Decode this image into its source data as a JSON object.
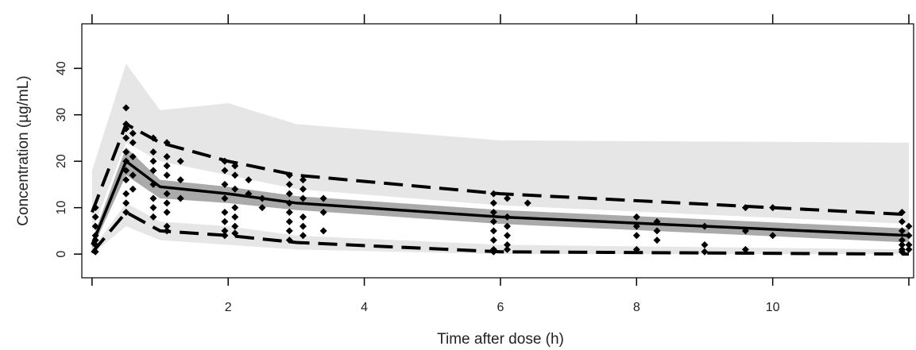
{
  "chart_data": {
    "type": "vpc",
    "xlabel": "Time after dose (h)",
    "ylabel": "Concentration (µg/mL)",
    "xlim": [
      -0.15,
      12.07
    ],
    "ylim": [
      -5.1,
      49.6
    ],
    "xticks": [
      {
        "value": 0,
        "label": null
      },
      2,
      4,
      6,
      8,
      10,
      {
        "value": 12,
        "label": null
      }
    ],
    "yticks": [
      0,
      10,
      20,
      30,
      40
    ],
    "x": [
      0,
      0.5,
      1,
      2,
      3,
      6,
      12
    ],
    "bands": [
      {
        "color": "#e6e6e6",
        "upper": [
          18,
          41,
          31,
          32.5,
          28,
          24.5,
          24
        ],
        "lower": [
          5,
          24,
          20,
          17,
          14,
          10.5,
          6.5
        ]
      },
      {
        "color": "#e6e6e6",
        "upper": [
          1,
          11,
          7,
          6,
          4,
          2,
          1
        ],
        "lower": [
          0,
          6,
          3,
          2,
          1,
          0,
          0
        ]
      },
      {
        "color": "#aaaaaa",
        "upper": [
          3,
          23,
          16,
          14.5,
          12.5,
          9.5,
          5.5
        ],
        "lower": [
          1,
          17,
          12,
          11,
          9.5,
          6.5,
          2.5
        ]
      }
    ],
    "lines": [
      {
        "color": "#000000",
        "dashed": false,
        "values": [
          2,
          20,
          14.5,
          13,
          11,
          8,
          4
        ]
      },
      {
        "color": "#000000",
        "dashed": true,
        "values": [
          9,
          28,
          24,
          20,
          17,
          13,
          8.5
        ]
      },
      {
        "color": "#000000",
        "dashed": true,
        "values": [
          0.3,
          9,
          5,
          4,
          2.5,
          0.5,
          0
        ]
      }
    ],
    "points": {
      "color": "#000000",
      "x": [
        0.05,
        0.05,
        0.05,
        0.05,
        0.05,
        0.05,
        0.05,
        0.5,
        0.5,
        0.5,
        0.5,
        0.5,
        0.5,
        0.5,
        0.5,
        0.5,
        0.5,
        0.5,
        0.6,
        0.6,
        0.6,
        0.6,
        0.6,
        0.9,
        0.9,
        0.9,
        0.9,
        0.9,
        0.9,
        0.9,
        0.9,
        1.1,
        1.1,
        1.1,
        1.1,
        1.1,
        1.1,
        1.1,
        1.1,
        1.1,
        1.3,
        1.3,
        1.3,
        1.95,
        1.95,
        1.95,
        1.95,
        1.95,
        1.95,
        1.95,
        1.95,
        2.1,
        2.1,
        2.1,
        2.1,
        2.1,
        2.1,
        2.1,
        2.3,
        2.3,
        2.5,
        2.5,
        2.9,
        2.9,
        2.9,
        2.9,
        2.9,
        2.9,
        2.9,
        2.9,
        3.1,
        3.1,
        3.1,
        3.1,
        3.1,
        3.1,
        3.4,
        3.4,
        3.4,
        5.9,
        5.9,
        5.9,
        5.9,
        5.9,
        5.9,
        5.9,
        5.9,
        6.1,
        6.1,
        6.1,
        6.1,
        6.1,
        6.1,
        6.4,
        8,
        8,
        8,
        8,
        8.3,
        8.3,
        8.3,
        9,
        9,
        9,
        9.6,
        9.6,
        9.6,
        10,
        10,
        11.9,
        11.9,
        11.9,
        11.9,
        11.9,
        11.9,
        11.9,
        12,
        12,
        12,
        12
      ],
      "values": [
        0.5,
        2,
        4,
        6,
        8,
        10,
        3,
        31.5,
        28,
        27,
        25,
        22,
        20,
        18,
        16,
        13,
        11,
        9,
        26,
        24,
        21,
        17,
        14,
        25,
        22,
        20,
        18,
        15,
        12,
        10,
        8,
        24,
        21,
        19,
        17,
        13,
        11,
        9,
        6,
        5,
        20,
        16,
        12,
        20,
        18,
        15,
        12,
        9,
        7,
        5,
        4,
        19,
        17,
        14,
        10,
        8,
        6,
        4.5,
        16,
        13,
        12,
        10,
        17,
        15,
        13,
        11,
        9,
        7,
        5,
        3,
        16,
        14,
        12,
        8,
        6,
        4,
        12,
        9,
        5,
        13,
        11,
        9,
        7,
        5,
        3,
        1,
        0.5,
        12,
        8,
        6,
        4,
        2,
        1,
        11,
        8,
        6,
        4,
        1,
        7,
        5,
        3,
        6,
        2,
        0.5,
        10,
        5,
        1,
        10,
        4,
        9,
        7,
        5,
        3,
        2,
        1,
        0.5,
        6,
        4,
        2,
        1
      ]
    }
  }
}
